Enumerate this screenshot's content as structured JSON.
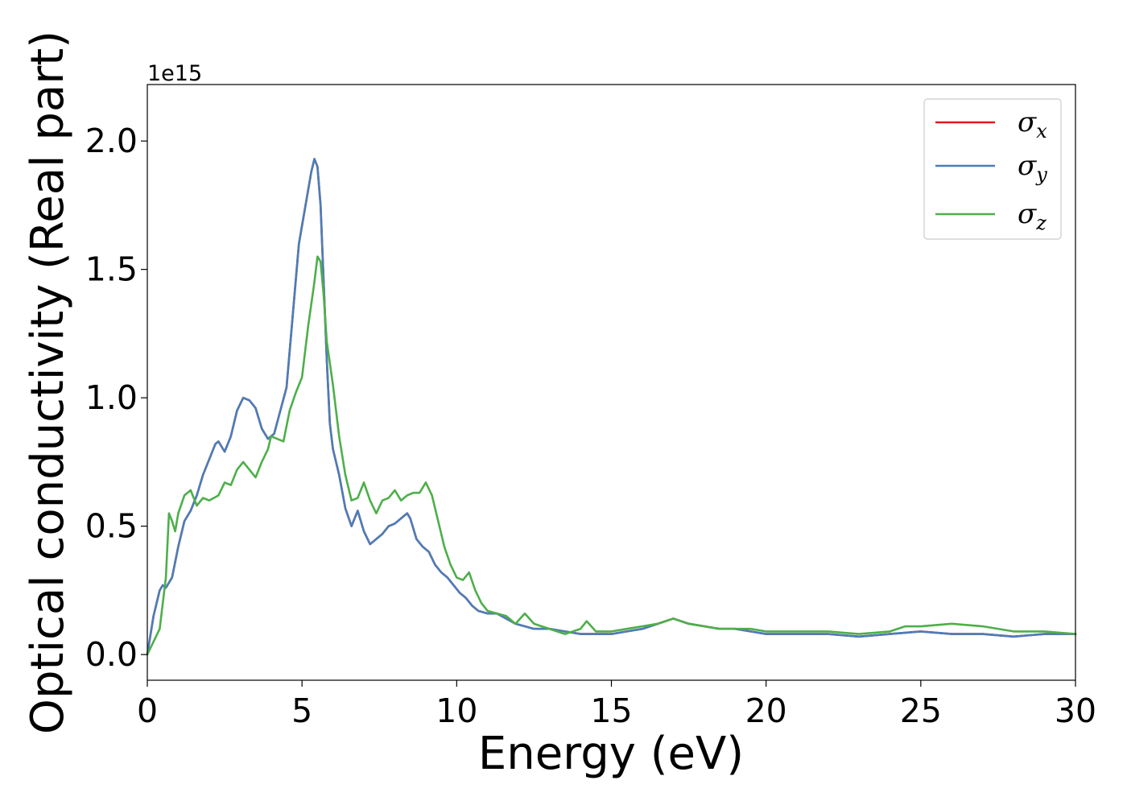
{
  "chart_data": {
    "type": "line",
    "title": "",
    "xlabel": "Energy (eV)",
    "ylabel": "Optical conductivity (Real part)",
    "y_offset_label": "1e15",
    "xlim": [
      0,
      30
    ],
    "ylim": [
      -0.1,
      2.22
    ],
    "x_ticks": [
      0,
      5,
      10,
      15,
      20,
      25,
      30
    ],
    "x_tick_labels": [
      "0",
      "5",
      "10",
      "15",
      "20",
      "25",
      "30"
    ],
    "y_ticks": [
      0.0,
      0.5,
      1.0,
      1.5,
      2.0
    ],
    "y_tick_labels": [
      "0.0",
      "0.5",
      "1.0",
      "1.5",
      "2.0"
    ],
    "grid": false,
    "legend_position": "top-right",
    "series": [
      {
        "name": "σx",
        "symbol": "σ",
        "subscript": "x",
        "color": "#e41a1c",
        "x": [
          0,
          0.2,
          0.4,
          0.5,
          0.6,
          0.8,
          1.0,
          1.2,
          1.4,
          1.6,
          1.8,
          2.0,
          2.2,
          2.3,
          2.5,
          2.7,
          2.9,
          3.1,
          3.3,
          3.5,
          3.7,
          3.9,
          4.1,
          4.3,
          4.5,
          4.7,
          4.9,
          5.1,
          5.3,
          5.4,
          5.5,
          5.6,
          5.7,
          5.8,
          5.9,
          6.0,
          6.2,
          6.4,
          6.6,
          6.8,
          7.0,
          7.2,
          7.4,
          7.6,
          7.8,
          8.0,
          8.2,
          8.4,
          8.5,
          8.7,
          8.9,
          9.1,
          9.3,
          9.5,
          9.7,
          9.9,
          10.1,
          10.3,
          10.5,
          10.7,
          11.0,
          11.3,
          11.6,
          11.9,
          12.2,
          12.5,
          13.0,
          13.5,
          14.0,
          14.5,
          15.0,
          15.5,
          16.0,
          16.5,
          17.0,
          17.5,
          18.0,
          18.5,
          19.0,
          19.5,
          20.0,
          21.0,
          22.0,
          23.0,
          24.0,
          25.0,
          26.0,
          27.0,
          28.0,
          29.0,
          30.0
        ],
        "y": [
          0.0,
          0.15,
          0.25,
          0.27,
          0.26,
          0.3,
          0.42,
          0.52,
          0.56,
          0.62,
          0.7,
          0.76,
          0.82,
          0.83,
          0.79,
          0.85,
          0.95,
          1.0,
          0.99,
          0.96,
          0.88,
          0.84,
          0.86,
          0.95,
          1.04,
          1.32,
          1.6,
          1.74,
          1.88,
          1.93,
          1.9,
          1.75,
          1.45,
          1.15,
          0.9,
          0.8,
          0.7,
          0.57,
          0.5,
          0.56,
          0.48,
          0.43,
          0.45,
          0.47,
          0.5,
          0.51,
          0.53,
          0.55,
          0.53,
          0.45,
          0.42,
          0.4,
          0.35,
          0.32,
          0.3,
          0.27,
          0.24,
          0.22,
          0.19,
          0.17,
          0.16,
          0.16,
          0.14,
          0.12,
          0.11,
          0.1,
          0.1,
          0.09,
          0.08,
          0.08,
          0.08,
          0.09,
          0.1,
          0.12,
          0.14,
          0.12,
          0.11,
          0.1,
          0.1,
          0.09,
          0.08,
          0.08,
          0.08,
          0.07,
          0.08,
          0.09,
          0.08,
          0.08,
          0.07,
          0.08,
          0.08
        ]
      },
      {
        "name": "σy",
        "symbol": "σ",
        "subscript": "y",
        "color": "#4a7eb8",
        "x": [
          0,
          0.2,
          0.4,
          0.5,
          0.6,
          0.8,
          1.0,
          1.2,
          1.4,
          1.6,
          1.8,
          2.0,
          2.2,
          2.3,
          2.5,
          2.7,
          2.9,
          3.1,
          3.3,
          3.5,
          3.7,
          3.9,
          4.1,
          4.3,
          4.5,
          4.7,
          4.9,
          5.1,
          5.3,
          5.4,
          5.5,
          5.6,
          5.7,
          5.8,
          5.9,
          6.0,
          6.2,
          6.4,
          6.6,
          6.8,
          7.0,
          7.2,
          7.4,
          7.6,
          7.8,
          8.0,
          8.2,
          8.4,
          8.5,
          8.7,
          8.9,
          9.1,
          9.3,
          9.5,
          9.7,
          9.9,
          10.1,
          10.3,
          10.5,
          10.7,
          11.0,
          11.3,
          11.6,
          11.9,
          12.2,
          12.5,
          13.0,
          13.5,
          14.0,
          14.5,
          15.0,
          15.5,
          16.0,
          16.5,
          17.0,
          17.5,
          18.0,
          18.5,
          19.0,
          19.5,
          20.0,
          21.0,
          22.0,
          23.0,
          24.0,
          25.0,
          26.0,
          27.0,
          28.0,
          29.0,
          30.0
        ],
        "y": [
          0.0,
          0.15,
          0.25,
          0.27,
          0.26,
          0.3,
          0.42,
          0.52,
          0.56,
          0.62,
          0.7,
          0.76,
          0.82,
          0.83,
          0.79,
          0.85,
          0.95,
          1.0,
          0.99,
          0.96,
          0.88,
          0.84,
          0.86,
          0.95,
          1.04,
          1.32,
          1.6,
          1.74,
          1.88,
          1.93,
          1.9,
          1.75,
          1.45,
          1.15,
          0.9,
          0.8,
          0.7,
          0.57,
          0.5,
          0.56,
          0.48,
          0.43,
          0.45,
          0.47,
          0.5,
          0.51,
          0.53,
          0.55,
          0.53,
          0.45,
          0.42,
          0.4,
          0.35,
          0.32,
          0.3,
          0.27,
          0.24,
          0.22,
          0.19,
          0.17,
          0.16,
          0.16,
          0.14,
          0.12,
          0.11,
          0.1,
          0.1,
          0.09,
          0.08,
          0.08,
          0.08,
          0.09,
          0.1,
          0.12,
          0.14,
          0.12,
          0.11,
          0.1,
          0.1,
          0.09,
          0.08,
          0.08,
          0.08,
          0.07,
          0.08,
          0.09,
          0.08,
          0.08,
          0.07,
          0.08,
          0.08
        ]
      },
      {
        "name": "σz",
        "symbol": "σ",
        "subscript": "z",
        "color": "#4daf4a",
        "x": [
          0,
          0.2,
          0.4,
          0.6,
          0.7,
          0.8,
          0.9,
          1.0,
          1.2,
          1.4,
          1.6,
          1.8,
          2.0,
          2.3,
          2.5,
          2.7,
          2.9,
          3.1,
          3.3,
          3.5,
          3.7,
          3.9,
          4.0,
          4.2,
          4.4,
          4.6,
          4.8,
          5.0,
          5.2,
          5.4,
          5.5,
          5.6,
          5.7,
          5.8,
          6.0,
          6.2,
          6.4,
          6.6,
          6.8,
          7.0,
          7.2,
          7.4,
          7.6,
          7.8,
          8.0,
          8.2,
          8.4,
          8.6,
          8.8,
          9.0,
          9.2,
          9.4,
          9.6,
          9.8,
          10.0,
          10.2,
          10.4,
          10.6,
          10.8,
          11.0,
          11.3,
          11.6,
          11.9,
          12.2,
          12.5,
          13.0,
          13.5,
          14.0,
          14.2,
          14.5,
          15.0,
          15.5,
          16.0,
          16.5,
          17.0,
          17.5,
          18.0,
          18.5,
          19.0,
          19.5,
          20.0,
          21.0,
          22.0,
          23.0,
          24.0,
          24.5,
          25.0,
          26.0,
          27.0,
          28.0,
          29.0,
          30.0
        ],
        "y": [
          0.0,
          0.05,
          0.1,
          0.3,
          0.55,
          0.52,
          0.48,
          0.55,
          0.62,
          0.64,
          0.58,
          0.61,
          0.6,
          0.62,
          0.67,
          0.66,
          0.72,
          0.75,
          0.72,
          0.69,
          0.75,
          0.8,
          0.85,
          0.84,
          0.83,
          0.95,
          1.02,
          1.08,
          1.28,
          1.45,
          1.55,
          1.53,
          1.4,
          1.22,
          1.05,
          0.85,
          0.7,
          0.6,
          0.61,
          0.67,
          0.6,
          0.55,
          0.6,
          0.61,
          0.64,
          0.6,
          0.62,
          0.63,
          0.63,
          0.67,
          0.62,
          0.52,
          0.42,
          0.35,
          0.3,
          0.29,
          0.32,
          0.25,
          0.2,
          0.17,
          0.16,
          0.15,
          0.12,
          0.16,
          0.12,
          0.1,
          0.08,
          0.1,
          0.13,
          0.09,
          0.09,
          0.1,
          0.11,
          0.12,
          0.14,
          0.12,
          0.11,
          0.1,
          0.1,
          0.1,
          0.09,
          0.09,
          0.09,
          0.08,
          0.09,
          0.11,
          0.11,
          0.12,
          0.11,
          0.09,
          0.09,
          0.08
        ]
      }
    ]
  }
}
